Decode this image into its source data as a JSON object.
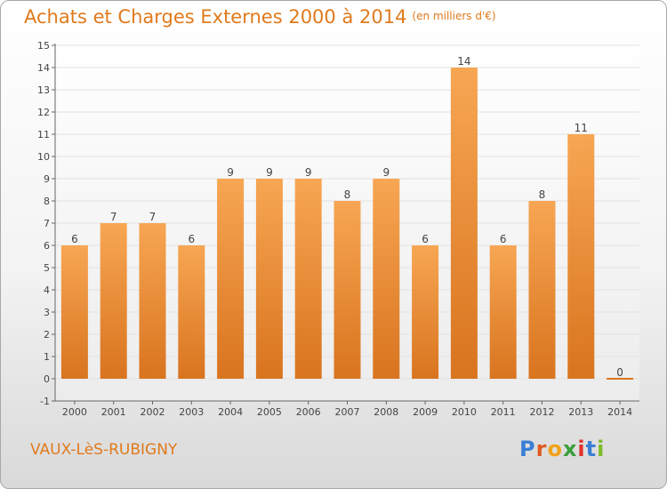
{
  "header": {
    "title": "Achats et Charges Externes 2000 à 2014",
    "subtitle": "(en milliers d'€)"
  },
  "footer": {
    "commune": "VAUX-LèS-RUBIGNY",
    "brand_letters": [
      "P",
      "r",
      "o",
      "x",
      "i",
      "t",
      "i"
    ],
    "brand_colors": [
      "#3a7fd5",
      "#e05a23",
      "#f2a21a",
      "#3a9f3a",
      "#e0332b",
      "#3a7fd5",
      "#7dbb2a"
    ]
  },
  "colors": {
    "accent": "#e07a1c",
    "bar_top": "#f7a653",
    "bar_bottom": "#d9741f",
    "grid": "#e2e2e2",
    "axis": "#666666"
  },
  "chart_data": {
    "type": "bar",
    "title": "Achats et Charges Externes 2000 à 2014",
    "subtitle": "(en milliers d'€)",
    "categories": [
      "2000",
      "2001",
      "2002",
      "2003",
      "2004",
      "2005",
      "2006",
      "2007",
      "2008",
      "2009",
      "2010",
      "2011",
      "2012",
      "2013",
      "2014"
    ],
    "values": [
      6,
      7,
      7,
      6,
      9,
      9,
      9,
      8,
      9,
      6,
      14,
      6,
      8,
      11,
      0
    ],
    "ylim": [
      -1,
      15
    ],
    "yticks": [
      -1,
      0,
      1,
      2,
      3,
      4,
      5,
      6,
      7,
      8,
      9,
      10,
      11,
      12,
      13,
      14,
      15
    ],
    "grid": true,
    "data_labels": true
  }
}
